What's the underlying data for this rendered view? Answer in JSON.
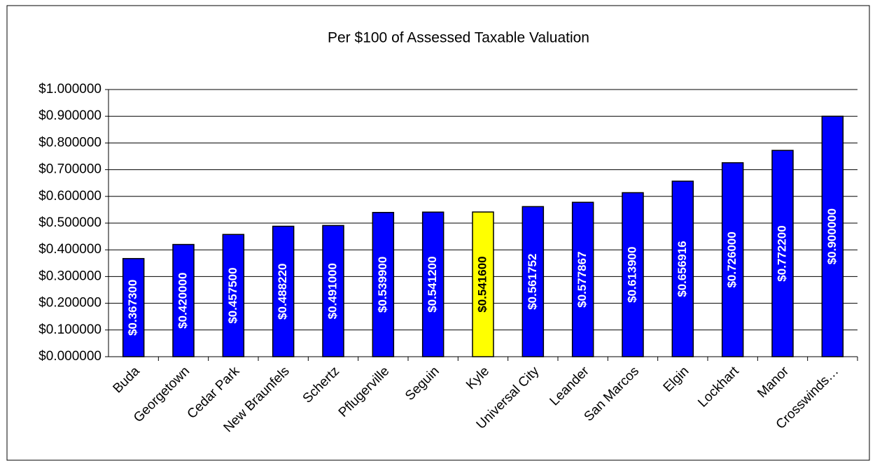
{
  "chart_data": {
    "type": "bar",
    "title": "Per $100 of Assessed Taxable Valuation",
    "categories": [
      "Buda",
      "Georgetown",
      "Cedar Park",
      "New Braunfels",
      "Schertz",
      "Pflugerville",
      "Seguin",
      "Kyle",
      "Universal City",
      "Leander",
      "San Marcos",
      "Elgin",
      "Lockhart",
      "Manor",
      "Crosswinds…"
    ],
    "values": [
      0.3673,
      0.42,
      0.4575,
      0.48822,
      0.491,
      0.5399,
      0.5412,
      0.5416,
      0.561752,
      0.577867,
      0.6139,
      0.656916,
      0.726,
      0.7722,
      0.9
    ],
    "value_labels": [
      "$0.367300",
      "$0.420000",
      "$0.457500",
      "$0.488220",
      "$0.491000",
      "$0.539900",
      "$0.541200",
      "$0.541600",
      "$0.561752",
      "$0.577867",
      "$0.613900",
      "$0.656916",
      "$0.726000",
      "$0.772200",
      "$0.900000"
    ],
    "colors": [
      "#0000ff",
      "#0000ff",
      "#0000ff",
      "#0000ff",
      "#0000ff",
      "#0000ff",
      "#0000ff",
      "#ffff00",
      "#0000ff",
      "#0000ff",
      "#0000ff",
      "#0000ff",
      "#0000ff",
      "#0000ff",
      "#0000ff"
    ],
    "ylim": [
      0,
      1
    ],
    "yticks": [
      {
        "value": 0,
        "label": "$0.000000"
      },
      {
        "value": 0.1,
        "label": "$0.100000"
      },
      {
        "value": 0.2,
        "label": "$0.200000"
      },
      {
        "value": 0.3,
        "label": "$0.300000"
      },
      {
        "value": 0.4,
        "label": "$0.400000"
      },
      {
        "value": 0.5,
        "label": "$0.500000"
      },
      {
        "value": 0.6,
        "label": "$0.600000"
      },
      {
        "value": 0.7,
        "label": "$0.700000"
      },
      {
        "value": 0.8,
        "label": "$0.800000"
      },
      {
        "value": 0.9,
        "label": "$0.900000"
      },
      {
        "value": 1,
        "label": "$1.000000"
      }
    ],
    "grid": true
  }
}
